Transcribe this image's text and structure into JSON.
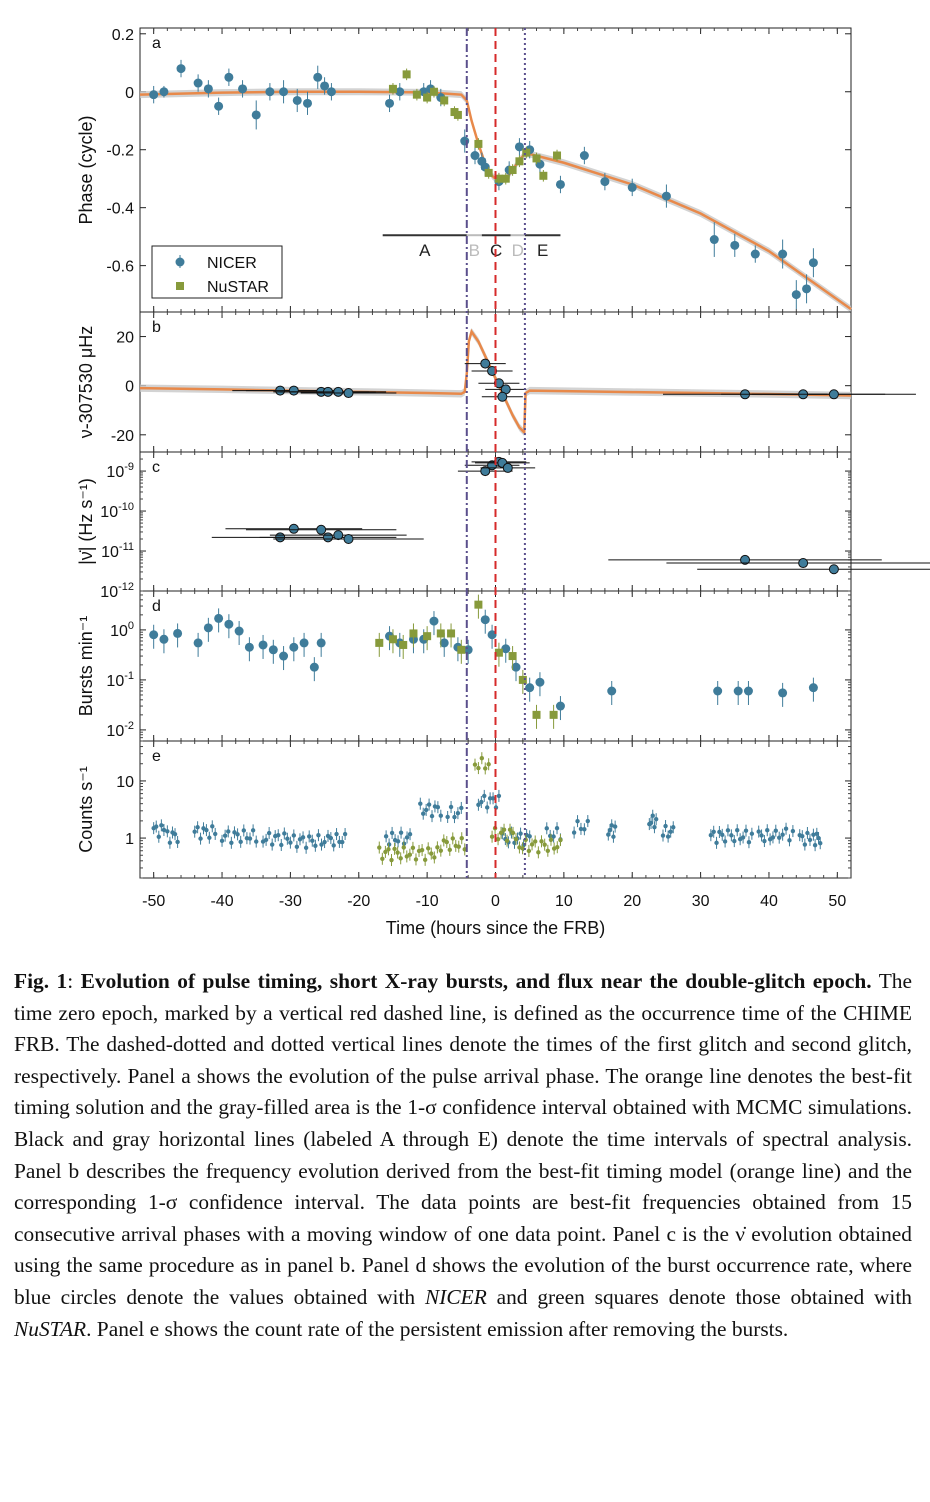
{
  "colors": {
    "nicer": "#3f7c9a",
    "nustar": "#879a3b",
    "fit": "#e8894a",
    "band": "#c8c8c8",
    "frb_line": "#d62a2a",
    "glitch1_line": "#5a4f8c",
    "glitch2_line": "#5a4f8c"
  },
  "figure": {
    "xlabel": "Time (hours since the FRB)",
    "xticks": [
      -50,
      -40,
      -30,
      -20,
      -10,
      0,
      10,
      20,
      30,
      40,
      50
    ],
    "xlim": [
      -52,
      52
    ],
    "vlines": {
      "glitch1": -4.2,
      "frb": 0,
      "glitch2": 4.3
    },
    "legend": [
      {
        "label": "NICER",
        "marker": "circle"
      },
      {
        "label": "NuSTAR",
        "marker": "square"
      }
    ]
  },
  "chart_data": [
    {
      "panel": "a",
      "type": "scatter",
      "ylabel": "Phase (cycle)",
      "ylim": [
        -0.76,
        0.22
      ],
      "yticks": [
        0.2,
        0,
        -0.2,
        -0.4,
        -0.6
      ],
      "ytick_labels": [
        "0.2",
        "0",
        "-0.2",
        "-0.4",
        "-0.6"
      ],
      "intervals": {
        "labels": [
          "A",
          "B",
          "C",
          "D",
          "E"
        ],
        "bars": [
          {
            "label": "A",
            "x0": -16.5,
            "x1": -4.2,
            "color": "#333333"
          },
          {
            "label": "B",
            "x0": -4.2,
            "x1": -2.0,
            "color": "#bbbbbb"
          },
          {
            "label": "C",
            "x0": -2.0,
            "x1": 2.2,
            "color": "#333333"
          },
          {
            "label": "D",
            "x0": 2.2,
            "x1": 4.3,
            "color": "#bbbbbb"
          },
          {
            "label": "E",
            "x0": 4.3,
            "x1": 9.5,
            "color": "#333333"
          }
        ],
        "y": -0.495
      },
      "series": [
        {
          "name": "NICER",
          "x": [
            -50,
            -48.5,
            -46,
            -43.5,
            -42,
            -40.5,
            -39,
            -37,
            -35,
            -33,
            -31,
            -29,
            -27.5,
            -26,
            -25,
            -24,
            -15.5,
            -14,
            -10.5,
            -9.5,
            -8,
            -4.5,
            -3,
            -2,
            -1.5,
            0.5,
            2,
            3.5,
            5,
            6.5,
            9.5,
            13,
            16,
            20,
            25,
            32,
            35,
            38,
            42,
            44,
            45.5,
            46.5
          ],
          "y": [
            -0.01,
            0,
            0.08,
            0.03,
            0.01,
            -0.05,
            0.05,
            0.01,
            -0.08,
            0,
            0,
            -0.03,
            -0.04,
            0.05,
            0.02,
            0,
            -0.04,
            0,
            0,
            0.01,
            -0.02,
            -0.17,
            -0.22,
            -0.24,
            -0.26,
            -0.31,
            -0.27,
            -0.19,
            -0.2,
            -0.25,
            -0.32,
            -0.22,
            -0.31,
            -0.33,
            -0.36,
            -0.51,
            -0.53,
            -0.56,
            -0.56,
            -0.7,
            -0.68,
            -0.59
          ],
          "err": [
            0.03,
            0.02,
            0.03,
            0.03,
            0.03,
            0.03,
            0.03,
            0.03,
            0.05,
            0.03,
            0.04,
            0.04,
            0.04,
            0.04,
            0.03,
            0.03,
            0.03,
            0.03,
            0.03,
            0.03,
            0.03,
            0.04,
            0.03,
            0.03,
            0.03,
            0.03,
            0.03,
            0.03,
            0.03,
            0.03,
            0.03,
            0.03,
            0.03,
            0.03,
            0.04,
            0.06,
            0.04,
            0.03,
            0.05,
            0.05,
            0.05,
            0.05
          ]
        },
        {
          "name": "NuSTAR",
          "x": [
            -15,
            -13,
            -11.5,
            -10,
            -9,
            -7.5,
            -6,
            -5.5,
            -2.5,
            -1,
            0.5,
            1.5,
            2.5,
            3.5,
            4.5,
            6,
            7,
            9
          ],
          "y": [
            0.01,
            0.06,
            -0.01,
            -0.02,
            0,
            -0.03,
            -0.07,
            -0.08,
            -0.18,
            -0.28,
            -0.3,
            -0.3,
            -0.27,
            -0.24,
            -0.21,
            -0.23,
            -0.29,
            -0.22
          ],
          "err": [
            0.02,
            0.02,
            0.02,
            0.02,
            0.02,
            0.02,
            0.02,
            0.02,
            0.02,
            0.02,
            0.02,
            0.02,
            0.02,
            0.02,
            0.02,
            0.02,
            0.02,
            0.02
          ]
        }
      ],
      "fit": {
        "x": [
          -52,
          -40,
          -30,
          -20,
          -10,
          -5,
          -4.2,
          -3.5,
          -2.5,
          -1.5,
          -0.5,
          0.5,
          1.5,
          2.5,
          3.5,
          4.3,
          5,
          10,
          20,
          30,
          40,
          52
        ],
        "y": [
          -0.01,
          -0.003,
          0,
          0,
          -0.002,
          -0.01,
          -0.03,
          -0.1,
          -0.18,
          -0.25,
          -0.29,
          -0.31,
          -0.3,
          -0.27,
          -0.235,
          -0.215,
          -0.215,
          -0.245,
          -0.32,
          -0.42,
          -0.55,
          -0.75
        ]
      }
    },
    {
      "panel": "b",
      "type": "scatter",
      "ylabel": "ν-307530 μHz",
      "ylim": [
        -27,
        30
      ],
      "yticks": [
        20,
        0,
        -20
      ],
      "ytick_labels": [
        "20",
        "0",
        "-20"
      ],
      "series": [
        {
          "name": "points",
          "x": [
            -31.5,
            -29.5,
            -25.5,
            -24.5,
            -23,
            -21.5,
            1.5,
            -1.5,
            -0.5,
            0.5,
            1.0,
            36.5,
            45,
            49.5
          ],
          "y": [
            -2,
            -2,
            -2.5,
            -2.5,
            -2.5,
            -3,
            -1.5,
            9,
            6,
            1,
            -4.5,
            -3.5,
            -3.5,
            -3.5
          ],
          "xerr": [
            7,
            7,
            7,
            7,
            7,
            7,
            3,
            3,
            3,
            3,
            3,
            12,
            12,
            12
          ]
        }
      ],
      "fit": {
        "x": [
          -52,
          -40,
          -30,
          -20,
          -10,
          -5,
          -4.5,
          -4.2,
          -3.9,
          -3.5,
          -2.5,
          -1.5,
          -0.5,
          0.5,
          1.5,
          2.5,
          3.5,
          4.2,
          4.4,
          5,
          10,
          20,
          30,
          40,
          52
        ],
        "y": [
          -1,
          -1.5,
          -2,
          -2.5,
          -3,
          -3.3,
          -2.5,
          5,
          18,
          22,
          18,
          12,
          6,
          0,
          -6,
          -12,
          -17,
          -19,
          -3,
          -2,
          -2.2,
          -2.6,
          -3,
          -3.4,
          -4
        ]
      }
    },
    {
      "panel": "c",
      "type": "scatter",
      "ylabel": "|ν̇| (Hz s⁻¹)",
      "yscale": "log",
      "ylim": [
        1e-12,
        3e-09
      ],
      "yticks": [
        1e-09,
        1e-10,
        1e-11,
        1e-12
      ],
      "series": [
        {
          "name": "points",
          "x": [
            -31.5,
            -29.5,
            -25.5,
            -24.5,
            -23,
            -21.5,
            -1.5,
            -0.5,
            0.5,
            1,
            1.8,
            36.5,
            45,
            49.5
          ],
          "y": [
            2.2e-11,
            3.6e-11,
            3.4e-11,
            2.2e-11,
            2.5e-11,
            2e-11,
            1e-09,
            1.4e-09,
            1.7e-09,
            1.6e-09,
            1.2e-09,
            6e-12,
            5e-12,
            3.5e-12
          ],
          "xerr": [
            10,
            10,
            11,
            10,
            10,
            11,
            4,
            4,
            4,
            4,
            4,
            20,
            20,
            20
          ]
        }
      ]
    },
    {
      "panel": "d",
      "type": "scatter",
      "ylabel": "Bursts min⁻¹",
      "yscale": "log",
      "ylim": [
        0.006,
        6
      ],
      "yticks": [
        1,
        0.1,
        0.01
      ],
      "series": [
        {
          "name": "NICER",
          "x": [
            -50,
            -48.5,
            -46.5,
            -43.5,
            -42,
            -40.5,
            -39,
            -37.5,
            -36,
            -34,
            -32.5,
            -31,
            -29.5,
            -28,
            -26.5,
            -25.5,
            -15.5,
            -14,
            -12,
            -10.5,
            -9,
            -7.5,
            -5.5,
            -4,
            -1.5,
            -0.5,
            1.5,
            3,
            5,
            6.5,
            9.5,
            17,
            32.5,
            35.5,
            37,
            42,
            46.5
          ],
          "y": [
            0.8,
            0.65,
            0.85,
            0.55,
            1.1,
            1.7,
            1.3,
            0.95,
            0.45,
            0.5,
            0.4,
            0.3,
            0.45,
            0.55,
            0.18,
            0.55,
            0.75,
            0.55,
            0.65,
            0.65,
            1.5,
            0.55,
            0.45,
            0.4,
            1.6,
            0.8,
            0.42,
            0.18,
            0.07,
            0.09,
            0.03,
            0.06,
            0.06,
            0.06,
            0.06,
            0.055,
            0.07
          ]
        },
        {
          "name": "NuSTAR",
          "x": [
            -17,
            -15,
            -13.5,
            -12,
            -10,
            -8,
            -6.5,
            -5,
            -2.5,
            0.5,
            2.5,
            4,
            6,
            8.5
          ],
          "y": [
            0.55,
            0.65,
            0.5,
            0.85,
            0.75,
            0.85,
            0.85,
            0.4,
            3.2,
            0.35,
            0.3,
            0.1,
            0.02,
            0.02
          ]
        }
      ]
    },
    {
      "panel": "e",
      "type": "scatter",
      "ylabel": "Counts s⁻¹",
      "yscale": "log",
      "ylim": [
        0.2,
        50
      ],
      "yticks": [
        10,
        1
      ],
      "ytick_labels": [
        "10",
        "1"
      ],
      "series": [
        {
          "name": "NICER",
          "segments": [
            [
              -50,
              -48.5,
              1.4
            ],
            [
              -48,
              -46.5,
              1.1
            ],
            [
              -44,
              -41,
              1.3
            ],
            [
              -40,
              -35,
              1.1
            ],
            [
              -34,
              -30,
              1.0
            ],
            [
              -29.5,
              -25,
              0.9
            ],
            [
              -24.5,
              -22,
              0.95
            ],
            [
              -16,
              -12.5,
              1.0
            ],
            [
              -11,
              -8,
              3.2
            ],
            [
              -7,
              -5,
              2.8
            ],
            [
              -2.5,
              0.5,
              4.5
            ],
            [
              1,
              5,
              1.0
            ],
            [
              7.5,
              9.5,
              1.2
            ],
            [
              11.5,
              13.5,
              1.6
            ],
            [
              16.5,
              17.5,
              1.4
            ],
            [
              22.5,
              23.5,
              2.0
            ],
            [
              24.5,
              26,
              1.3
            ],
            [
              31.5,
              34,
              1.1
            ],
            [
              34.5,
              37.5,
              1.1
            ],
            [
              38.5,
              41,
              1.1
            ],
            [
              41.5,
              43.5,
              1.2
            ],
            [
              44.5,
              46,
              1.0
            ],
            [
              46.5,
              47.5,
              1.0
            ]
          ]
        },
        {
          "name": "NuSTAR",
          "segments": [
            [
              -17,
              -8.5,
              0.55
            ],
            [
              -8,
              -4.5,
              0.8
            ],
            [
              -3,
              -1,
              20
            ],
            [
              -0.5,
              3,
              1.2
            ],
            [
              3.5,
              9.5,
              0.75
            ]
          ]
        }
      ]
    }
  ],
  "caption": {
    "fig_label": "Fig. 1",
    "title": "Evolution of pulse timing, short X-ray bursts, and flux near the double-glitch epoch.",
    "body_1": "The time zero epoch, marked by a vertical red dashed line, is defined as the occurrence time of the CHIME FRB. The dashed-dotted and dotted vertical lines denote the times of the first glitch and second glitch, respectively. Panel a shows the evolution of the pulse arrival phase. The orange line denotes the best-fit timing solution and the gray-filled area is the 1-σ confidence interval obtained with MCMC simulations. Black and gray horizontal lines (labeled A through E) denote the time intervals of spectral analysis. Panel b describes the frequency evolution derived from the best-fit timing model (orange line) and the corresponding 1-σ confidence interval. The data points are best-fit frequencies obtained from 15 consecutive arrival phases with a moving window of one data point. Panel c is the ν̇ evolution obtained using the same procedure as in panel b. Panel d shows the evolution of the burst occurrence rate, where blue circles denote the values obtained with ",
    "nicer": "NICER",
    "body_2": " and green squares denote those obtained with ",
    "nustar": "NuSTAR",
    "body_3": ". Panel e shows the count rate of the persistent emission after removing the bursts."
  }
}
